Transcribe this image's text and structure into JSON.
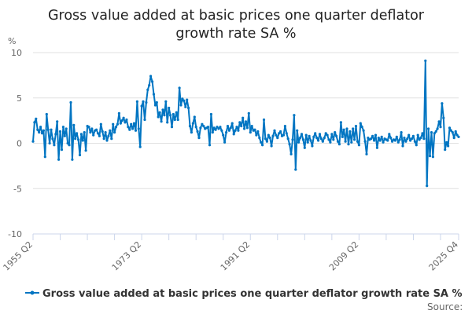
{
  "chart_data": {
    "type": "line",
    "title": "Gross value added at basic prices one quarter deflator growth rate SA %",
    "title_lines": [
      "Gross value added at basic prices one quarter deflator",
      "growth rate SA %"
    ],
    "ylabel": "%",
    "xlabel": "",
    "ylim": [
      -10,
      10
    ],
    "yticks": [
      10,
      5,
      0,
      -5,
      -10
    ],
    "x_start": "1955 Q2",
    "x_end": "2025 Q4",
    "xtick_labels": [
      {
        "label": "1955 Q2",
        "index": 0
      },
      {
        "label": "1973 Q2",
        "index": 72
      },
      {
        "label": "1991 Q2",
        "index": 144
      },
      {
        "label": "2009 Q2",
        "index": 216
      },
      {
        "label": "2025 Q4",
        "index": 282
      }
    ],
    "grid": true,
    "legend_position": "bottom",
    "series": [
      {
        "name": "Gross value added at basic prices one quarter deflator growth rate SA %",
        "color": "#0075c2",
        "values": [
          0.2,
          2.3,
          2.7,
          1.5,
          1.2,
          1.8,
          1.1,
          1.4,
          -1.5,
          3.2,
          1.5,
          0,
          1.5,
          0.5,
          -0.2,
          1,
          2.4,
          -1.8,
          1.3,
          -0.7,
          1.8,
          0.8,
          1.6,
          0,
          -0.2,
          4.5,
          -1.8,
          2,
          0.5,
          1.1,
          0.4,
          -1.3,
          1,
          0.3,
          1.2,
          -0.8,
          1.9,
          1.8,
          1.2,
          1.6,
          0.9,
          1.4,
          1.5,
          1.1,
          0.8,
          2.1,
          1.3,
          0.5,
          1.2,
          0.3,
          0.8,
          1.4,
          0.5,
          2.1,
          1.2,
          1.8,
          2.1,
          3.3,
          2.2,
          2.5,
          2.8,
          2.3,
          2.6,
          1.8,
          1.5,
          2.1,
          1.6,
          2.2,
          1.4,
          4.6,
          1.6,
          -0.4,
          4.1,
          4.6,
          2.6,
          4.5,
          5.9,
          6.4,
          7.4,
          6.8,
          5.4,
          4.2,
          4.5,
          2.9,
          3.4,
          2.4,
          3.7,
          3.1,
          4.6,
          2.3,
          3.9,
          3.1,
          1.8,
          3.2,
          2.6,
          3.4,
          2.6,
          6.1,
          4.2,
          4.9,
          4.7,
          4.0,
          4.8,
          3.9,
          1.9,
          1.2,
          2.2,
          2.9,
          1.8,
          1.3,
          0.6,
          1.7,
          2.1,
          1.9,
          1.6,
          1.7,
          1.8,
          -0.2,
          3.2,
          1.2,
          1.7,
          1.5,
          1.8,
          1.6,
          1.8,
          1.4,
          0.9,
          0.1,
          1.2,
          1.9,
          1.4,
          1.7,
          2.2,
          1.0,
          1.4,
          1.8,
          1.4,
          2.3,
          1.9,
          2.8,
          1.6,
          2.4,
          1.7,
          3.3,
          1.2,
          1.9,
          1.4,
          1.5,
          0.9,
          1.3,
          0.6,
          0.1,
          -0.2,
          2.6,
          0.5,
          0.2,
          0.9,
          0.6,
          -0.3,
          0.8,
          1.4,
          0.9,
          0.6,
          1.1,
          1.3,
          0.8,
          0.9,
          1.9,
          1.1,
          0.5,
          -0.1,
          -1.2,
          0.4,
          3.1,
          -2.9,
          1.4,
          0.1,
          0.6,
          1.0,
          0.4,
          -0.5,
          0.9,
          0.1,
          0.8,
          0.3,
          -0.3,
          0.7,
          1.1,
          0.6,
          0.3,
          1.0,
          0.5,
          0.2,
          0.6,
          1.1,
          0.9,
          0.4,
          0.1,
          1.0,
          0.4,
          1.2,
          0.8,
          0.2,
          -0.1,
          2.3,
          0.7,
          1.5,
          0.2,
          1.6,
          -0.1,
          1.3,
          0.1,
          1.6,
          0.4,
          1.9,
          0.2,
          -0.2,
          2.2,
          1.8,
          1.4,
          0.2,
          -1.2,
          0.6,
          0.4,
          0.5,
          0.8,
          0.3,
          0.9,
          -0.5,
          0.6,
          0.3,
          0.7,
          0.1,
          0.5,
          0.4,
          0.3,
          1.0,
          0.6,
          0.2,
          0.4,
          0.3,
          0.7,
          0.1,
          0.4,
          1.2,
          -0.3,
          0.6,
          0.2,
          0.5,
          0.9,
          0.3,
          0.5,
          0.8,
          0.2,
          -0.2,
          0.9,
          0.4,
          0.6,
          1.1,
          0.5,
          9.1,
          -4.7,
          1.6,
          -1.4,
          1.2,
          -1.5,
          1.1,
          1.3,
          1.6,
          2.4,
          1.8,
          4.4,
          2.8,
          -0.7,
          0.1,
          -0.3,
          1.7,
          1.4,
          1.2,
          0.6,
          1.3,
          0.9,
          0.7
        ]
      }
    ],
    "source_label": "Source:"
  }
}
